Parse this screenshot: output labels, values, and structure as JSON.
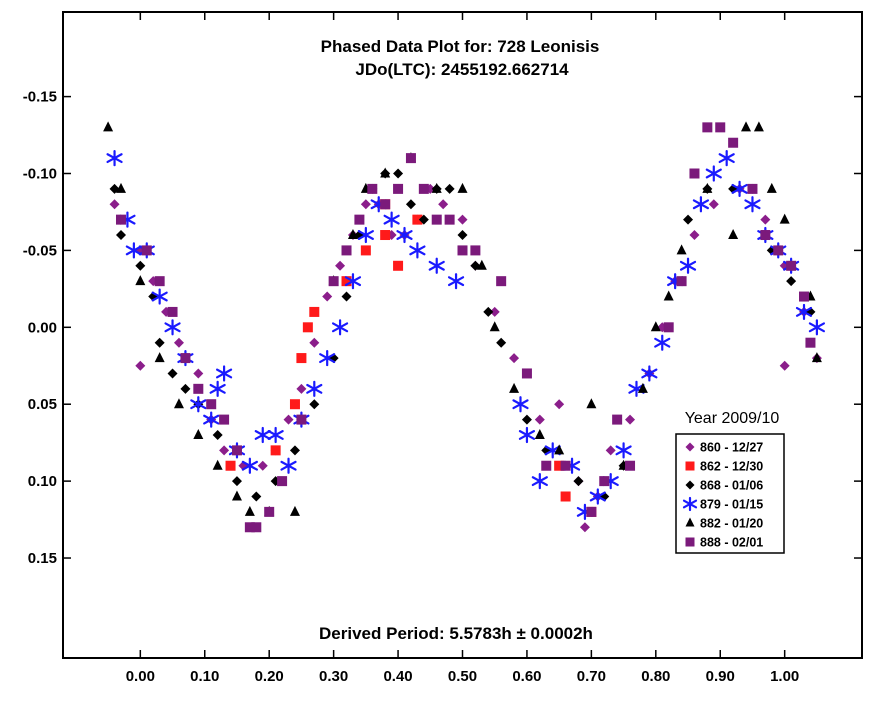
{
  "chart_data": {
    "type": "scatter",
    "title": "Phased Data Plot for: 728 Leonisis",
    "subtitle": "JDo(LTC): 2455192.662714",
    "annotation": "Derived Period: 5.5783h ± 0.0002h",
    "legend_title": "Year 2009/10",
    "legend_position": "lower-right",
    "xlabel": "",
    "ylabel": "",
    "xlim": [
      -0.12,
      1.12
    ],
    "ylim": [
      0.215,
      -0.205
    ],
    "y_reversed": true,
    "grid": false,
    "x_ticks": [
      0,
      0.1,
      0.2,
      0.3,
      0.4,
      0.5,
      0.6,
      0.7,
      0.8,
      0.9,
      1.0
    ],
    "x_tick_labels": [
      "0.00",
      "0.10",
      "0.20",
      "0.30",
      "0.40",
      "0.50",
      "0.60",
      "0.70",
      "0.80",
      "0.90",
      "1.00"
    ],
    "y_ticks": [
      -0.15,
      -0.1,
      -0.05,
      0,
      0.05,
      0.1,
      0.15
    ],
    "y_tick_labels": [
      "-0.15",
      "-0.10",
      "-0.05",
      "0.00",
      "0.05",
      "0.10",
      "0.15"
    ],
    "series": [
      {
        "name": "860 - 12/27",
        "marker": "diamond",
        "color": "#8B1E8B",
        "points": [
          [
            -0.04,
            -0.08
          ],
          [
            -0.03,
            -0.07
          ],
          [
            0.0,
            -0.05
          ],
          [
            0.02,
            -0.03
          ],
          [
            0.04,
            -0.01
          ],
          [
            0.06,
            0.01
          ],
          [
            0.09,
            0.03
          ],
          [
            0.11,
            0.06
          ],
          [
            0.13,
            0.08
          ],
          [
            0.16,
            0.09
          ],
          [
            0.19,
            0.09
          ],
          [
            0.21,
            0.08
          ],
          [
            0.23,
            0.06
          ],
          [
            0.25,
            0.04
          ],
          [
            0.27,
            0.01
          ],
          [
            0.29,
            -0.02
          ],
          [
            0.31,
            -0.04
          ],
          [
            0.33,
            -0.06
          ],
          [
            0.35,
            -0.08
          ],
          [
            0.37,
            -0.08
          ],
          [
            0.39,
            -0.06
          ],
          [
            0.41,
            -0.06
          ],
          [
            0.43,
            -0.07
          ],
          [
            0.45,
            -0.09
          ],
          [
            0.47,
            -0.08
          ],
          [
            0.5,
            -0.07
          ],
          [
            0.52,
            -0.04
          ],
          [
            0.55,
            -0.01
          ],
          [
            0.58,
            0.02
          ],
          [
            0.62,
            0.06
          ],
          [
            0.65,
            0.05
          ],
          [
            0.68,
            0.1
          ],
          [
            0.69,
            0.13
          ],
          [
            0.71,
            0.11
          ],
          [
            0.73,
            0.08
          ],
          [
            0.76,
            0.06
          ],
          [
            0.79,
            0.03
          ],
          [
            0.81,
            0.0
          ],
          [
            0.83,
            -0.03
          ],
          [
            0.86,
            -0.06
          ],
          [
            0.89,
            -0.08
          ],
          [
            0.93,
            -0.09
          ],
          [
            0.97,
            -0.07
          ],
          [
            1.0,
            -0.04
          ],
          [
            1.03,
            -0.01
          ],
          [
            1.05,
            0.02
          ],
          [
            1.0,
            0.025
          ],
          [
            0.0,
            0.025
          ]
        ]
      },
      {
        "name": "862 - 12/30",
        "marker": "square",
        "color": "#FF1A1A",
        "points": [
          [
            0.14,
            0.09
          ],
          [
            0.21,
            0.08
          ],
          [
            0.24,
            0.05
          ],
          [
            0.25,
            0.02
          ],
          [
            0.26,
            0.0
          ],
          [
            0.27,
            -0.01
          ],
          [
            0.32,
            -0.03
          ],
          [
            0.35,
            -0.05
          ],
          [
            0.38,
            -0.08
          ],
          [
            0.38,
            -0.06
          ],
          [
            0.4,
            -0.04
          ],
          [
            0.43,
            -0.07
          ],
          [
            0.65,
            0.09
          ],
          [
            0.66,
            0.11
          ],
          [
            0.7,
            0.12
          ]
        ]
      },
      {
        "name": "868 - 01/06",
        "marker": "diamond",
        "color": "#000000",
        "points": [
          [
            -0.04,
            -0.09
          ],
          [
            -0.03,
            -0.06
          ],
          [
            0.0,
            -0.04
          ],
          [
            0.02,
            -0.02
          ],
          [
            0.03,
            0.01
          ],
          [
            0.05,
            0.03
          ],
          [
            0.07,
            0.04
          ],
          [
            0.09,
            0.05
          ],
          [
            0.12,
            0.07
          ],
          [
            0.15,
            0.1
          ],
          [
            0.18,
            0.11
          ],
          [
            0.21,
            0.1
          ],
          [
            0.24,
            0.08
          ],
          [
            0.27,
            0.05
          ],
          [
            0.3,
            0.02
          ],
          [
            0.32,
            -0.02
          ],
          [
            0.34,
            -0.06
          ],
          [
            0.36,
            -0.09
          ],
          [
            0.38,
            -0.1
          ],
          [
            0.4,
            -0.1
          ],
          [
            0.42,
            -0.08
          ],
          [
            0.44,
            -0.07
          ],
          [
            0.46,
            -0.09
          ],
          [
            0.48,
            -0.09
          ],
          [
            0.5,
            -0.06
          ],
          [
            0.52,
            -0.04
          ],
          [
            0.54,
            -0.01
          ],
          [
            0.56,
            0.01
          ],
          [
            0.6,
            0.06
          ],
          [
            0.63,
            0.08
          ],
          [
            0.68,
            0.1
          ],
          [
            0.72,
            0.11
          ],
          [
            0.75,
            0.09
          ],
          [
            0.85,
            -0.07
          ],
          [
            0.88,
            -0.09
          ],
          [
            0.92,
            -0.09
          ],
          [
            0.95,
            -0.09
          ],
          [
            0.98,
            -0.05
          ],
          [
            1.01,
            -0.03
          ],
          [
            1.04,
            -0.01
          ]
        ]
      },
      {
        "name": "879 - 01/15",
        "marker": "asterisk",
        "color": "#1A1AFF",
        "points": [
          [
            -0.04,
            -0.11
          ],
          [
            -0.02,
            -0.07
          ],
          [
            -0.01,
            -0.05
          ],
          [
            0.01,
            -0.05
          ],
          [
            0.03,
            -0.02
          ],
          [
            0.05,
            0.0
          ],
          [
            0.07,
            0.02
          ],
          [
            0.09,
            0.05
          ],
          [
            0.11,
            0.06
          ],
          [
            0.12,
            0.04
          ],
          [
            0.13,
            0.03
          ],
          [
            0.15,
            0.08
          ],
          [
            0.17,
            0.09
          ],
          [
            0.19,
            0.07
          ],
          [
            0.21,
            0.07
          ],
          [
            0.23,
            0.09
          ],
          [
            0.25,
            0.06
          ],
          [
            0.27,
            0.04
          ],
          [
            0.29,
            0.02
          ],
          [
            0.31,
            0.0
          ],
          [
            0.33,
            -0.03
          ],
          [
            0.35,
            -0.06
          ],
          [
            0.37,
            -0.08
          ],
          [
            0.39,
            -0.07
          ],
          [
            0.41,
            -0.06
          ],
          [
            0.43,
            -0.05
          ],
          [
            0.46,
            -0.04
          ],
          [
            0.49,
            -0.03
          ],
          [
            0.59,
            0.05
          ],
          [
            0.6,
            0.07
          ],
          [
            0.62,
            0.1
          ],
          [
            0.64,
            0.08
          ],
          [
            0.67,
            0.09
          ],
          [
            0.69,
            0.12
          ],
          [
            0.71,
            0.11
          ],
          [
            0.73,
            0.1
          ],
          [
            0.75,
            0.08
          ],
          [
            0.77,
            0.04
          ],
          [
            0.79,
            0.03
          ],
          [
            0.81,
            0.01
          ],
          [
            0.83,
            -0.03
          ],
          [
            0.85,
            -0.04
          ],
          [
            0.87,
            -0.08
          ],
          [
            0.89,
            -0.1
          ],
          [
            0.91,
            -0.11
          ],
          [
            0.93,
            -0.09
          ],
          [
            0.95,
            -0.08
          ],
          [
            0.97,
            -0.06
          ],
          [
            0.99,
            -0.05
          ],
          [
            1.01,
            -0.04
          ],
          [
            1.03,
            -0.01
          ],
          [
            1.05,
            0.0
          ]
        ]
      },
      {
        "name": "882 - 01/20",
        "marker": "triangle",
        "color": "#000000",
        "points": [
          [
            -0.05,
            -0.13
          ],
          [
            -0.03,
            -0.09
          ],
          [
            0.0,
            -0.03
          ],
          [
            0.03,
            0.02
          ],
          [
            0.06,
            0.05
          ],
          [
            0.09,
            0.07
          ],
          [
            0.12,
            0.09
          ],
          [
            0.15,
            0.11
          ],
          [
            0.17,
            0.12
          ],
          [
            0.2,
            0.12
          ],
          [
            0.24,
            0.12
          ],
          [
            0.3,
            -0.03
          ],
          [
            0.33,
            -0.06
          ],
          [
            0.35,
            -0.09
          ],
          [
            0.38,
            -0.1
          ],
          [
            0.42,
            -0.11
          ],
          [
            0.46,
            -0.09
          ],
          [
            0.5,
            -0.09
          ],
          [
            0.53,
            -0.04
          ],
          [
            0.55,
            0.0
          ],
          [
            0.58,
            0.04
          ],
          [
            0.62,
            0.07
          ],
          [
            0.65,
            0.08
          ],
          [
            0.7,
            0.05
          ],
          [
            0.75,
            0.09
          ],
          [
            0.78,
            0.04
          ],
          [
            0.8,
            0.0
          ],
          [
            0.82,
            -0.02
          ],
          [
            0.84,
            -0.05
          ],
          [
            0.88,
            -0.09
          ],
          [
            0.92,
            -0.06
          ],
          [
            0.94,
            -0.13
          ],
          [
            0.96,
            -0.13
          ],
          [
            0.98,
            -0.09
          ],
          [
            1.0,
            -0.07
          ],
          [
            1.04,
            -0.02
          ],
          [
            1.05,
            0.02
          ]
        ]
      },
      {
        "name": "888 - 02/01",
        "marker": "square",
        "color": "#7B1A7B",
        "points": [
          [
            -0.03,
            -0.07
          ],
          [
            0.01,
            -0.05
          ],
          [
            0.03,
            -0.03
          ],
          [
            0.05,
            -0.01
          ],
          [
            0.07,
            0.02
          ],
          [
            0.09,
            0.04
          ],
          [
            0.11,
            0.05
          ],
          [
            0.13,
            0.06
          ],
          [
            0.15,
            0.08
          ],
          [
            0.17,
            0.13
          ],
          [
            0.18,
            0.13
          ],
          [
            0.2,
            0.12
          ],
          [
            0.22,
            0.1
          ],
          [
            0.25,
            0.06
          ],
          [
            0.3,
            -0.03
          ],
          [
            0.32,
            -0.05
          ],
          [
            0.34,
            -0.07
          ],
          [
            0.36,
            -0.09
          ],
          [
            0.38,
            -0.08
          ],
          [
            0.4,
            -0.09
          ],
          [
            0.42,
            -0.11
          ],
          [
            0.44,
            -0.09
          ],
          [
            0.46,
            -0.07
          ],
          [
            0.48,
            -0.07
          ],
          [
            0.5,
            -0.05
          ],
          [
            0.52,
            -0.05
          ],
          [
            0.56,
            -0.03
          ],
          [
            0.6,
            0.03
          ],
          [
            0.63,
            0.09
          ],
          [
            0.66,
            0.09
          ],
          [
            0.7,
            0.12
          ],
          [
            0.72,
            0.1
          ],
          [
            0.74,
            0.06
          ],
          [
            0.76,
            0.09
          ],
          [
            0.82,
            0.0
          ],
          [
            0.84,
            -0.03
          ],
          [
            0.86,
            -0.1
          ],
          [
            0.88,
            -0.13
          ],
          [
            0.9,
            -0.13
          ],
          [
            0.92,
            -0.12
          ],
          [
            0.95,
            -0.09
          ],
          [
            0.97,
            -0.06
          ],
          [
            0.99,
            -0.05
          ],
          [
            1.01,
            -0.04
          ],
          [
            1.03,
            -0.02
          ],
          [
            1.04,
            0.01
          ]
        ]
      }
    ]
  }
}
